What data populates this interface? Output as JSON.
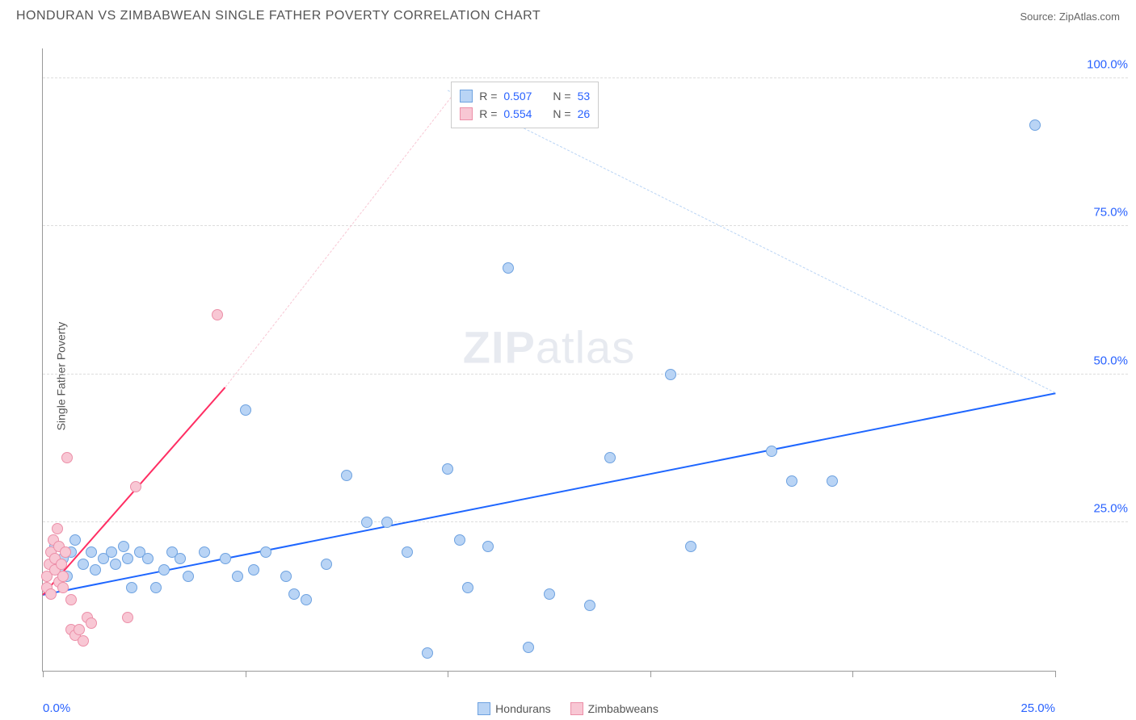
{
  "title": "HONDURAN VS ZIMBABWEAN SINGLE FATHER POVERTY CORRELATION CHART",
  "source_label": "Source: ",
  "source_name": "ZipAtlas.com",
  "y_axis_label": "Single Father Poverty",
  "watermark_a": "ZIP",
  "watermark_b": "atlas",
  "chart": {
    "type": "scatter",
    "xlim": [
      0,
      25
    ],
    "ylim": [
      0,
      105
    ],
    "x_ticks": [
      0,
      5,
      10,
      15,
      20,
      25
    ],
    "x_tick_labels": [
      "0.0%",
      "",
      "",
      "",
      "",
      "25.0%"
    ],
    "y_ticks": [
      25,
      50,
      75,
      100
    ],
    "y_tick_labels": [
      "25.0%",
      "50.0%",
      "75.0%",
      "100.0%"
    ],
    "grid_color": "#dddddd",
    "background_color": "#ffffff",
    "marker_radius": 7,
    "marker_stroke_width": 1,
    "series": [
      {
        "name": "Hondurans",
        "fill": "#b9d4f5",
        "stroke": "#6ea2e0",
        "line_color": "#1e66ff",
        "r_label": "R = ",
        "r_value": "0.507",
        "n_label": "N = ",
        "n_value": "53",
        "trend": {
          "x1": 0,
          "y1": 13,
          "x2": 25,
          "y2": 47,
          "dash_to_x": 10.0,
          "dash_to_y": 98
        },
        "points": [
          [
            0.2,
            18
          ],
          [
            0.3,
            21
          ],
          [
            0.4,
            17
          ],
          [
            0.5,
            19
          ],
          [
            0.6,
            16
          ],
          [
            0.7,
            20
          ],
          [
            0.8,
            22
          ],
          [
            1.0,
            18
          ],
          [
            1.2,
            20
          ],
          [
            1.3,
            17
          ],
          [
            1.5,
            19
          ],
          [
            1.7,
            20
          ],
          [
            1.8,
            18
          ],
          [
            2.0,
            21
          ],
          [
            2.1,
            19
          ],
          [
            2.2,
            14
          ],
          [
            2.4,
            20
          ],
          [
            2.6,
            19
          ],
          [
            2.8,
            14
          ],
          [
            3.0,
            17
          ],
          [
            3.2,
            20
          ],
          [
            3.4,
            19
          ],
          [
            3.6,
            16
          ],
          [
            4.0,
            20
          ],
          [
            4.5,
            19
          ],
          [
            4.8,
            16
          ],
          [
            5.0,
            44
          ],
          [
            5.2,
            17
          ],
          [
            5.5,
            20
          ],
          [
            6.0,
            16
          ],
          [
            6.2,
            13
          ],
          [
            6.5,
            12
          ],
          [
            7.0,
            18
          ],
          [
            7.5,
            33
          ],
          [
            8.0,
            25
          ],
          [
            8.5,
            25
          ],
          [
            9.0,
            20
          ],
          [
            9.5,
            3
          ],
          [
            10.0,
            34
          ],
          [
            10.3,
            22
          ],
          [
            10.5,
            14
          ],
          [
            11.0,
            21
          ],
          [
            11.5,
            68
          ],
          [
            12.0,
            4
          ],
          [
            12.5,
            13
          ],
          [
            13.5,
            11
          ],
          [
            14.0,
            36
          ],
          [
            15.5,
            50
          ],
          [
            16.0,
            21
          ],
          [
            18.0,
            37
          ],
          [
            18.5,
            32
          ],
          [
            19.5,
            32
          ],
          [
            24.5,
            92
          ]
        ]
      },
      {
        "name": "Zimbabweans",
        "fill": "#f8c7d4",
        "stroke": "#ec8fa8",
        "line_color": "#ff2e63",
        "r_label": "R = ",
        "r_value": "0.554",
        "n_label": "N = ",
        "n_value": "26",
        "trend": {
          "x1": 0,
          "y1": 13,
          "x2": 4.5,
          "y2": 48,
          "dash_to_x": 10.2,
          "dash_to_y": 98
        },
        "points": [
          [
            0.1,
            14
          ],
          [
            0.1,
            16
          ],
          [
            0.15,
            18
          ],
          [
            0.2,
            20
          ],
          [
            0.2,
            13
          ],
          [
            0.25,
            22
          ],
          [
            0.3,
            17
          ],
          [
            0.3,
            19
          ],
          [
            0.35,
            24
          ],
          [
            0.4,
            15
          ],
          [
            0.4,
            21
          ],
          [
            0.45,
            18
          ],
          [
            0.5,
            16
          ],
          [
            0.5,
            14
          ],
          [
            0.55,
            20
          ],
          [
            0.6,
            36
          ],
          [
            0.7,
            7
          ],
          [
            0.7,
            12
          ],
          [
            0.8,
            6
          ],
          [
            0.9,
            7
          ],
          [
            1.0,
            5
          ],
          [
            1.1,
            9
          ],
          [
            1.2,
            8
          ],
          [
            2.1,
            9
          ],
          [
            2.3,
            31
          ],
          [
            4.3,
            60
          ]
        ]
      }
    ]
  },
  "legend": {
    "items": [
      {
        "label": "Hondurans",
        "fill": "#b9d4f5",
        "stroke": "#6ea2e0"
      },
      {
        "label": "Zimbabweans",
        "fill": "#f8c7d4",
        "stroke": "#ec8fa8"
      }
    ]
  }
}
